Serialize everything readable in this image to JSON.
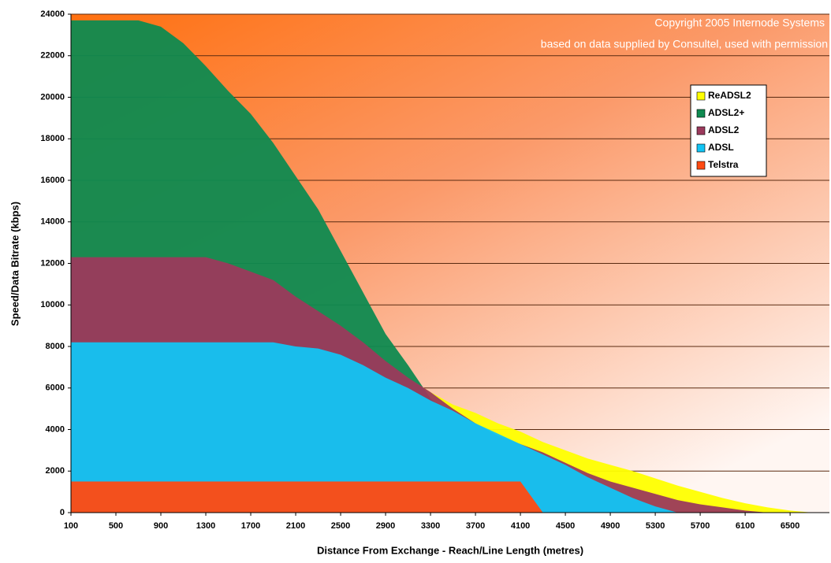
{
  "chart_data": {
    "type": "area",
    "y_label": "Speed/Data Bitrate (kbps)",
    "x_label": "Distance From Exchange - Reach/Line Length (metres)",
    "annotations": [
      "Copyright 2005 Internode Systems",
      "based on data supplied by Consultel, used with permission"
    ],
    "x": [
      100,
      300,
      500,
      700,
      900,
      1100,
      1300,
      1500,
      1700,
      1900,
      2100,
      2300,
      2500,
      2700,
      2900,
      3100,
      3300,
      3500,
      3700,
      3900,
      4100,
      4300,
      4500,
      4700,
      4900,
      5100,
      5300,
      5500,
      5700,
      5900,
      6100,
      6300,
      6500,
      6700
    ],
    "series": [
      {
        "name": "ReADSL2",
        "color": "#ffff00",
        "values": [
          12300,
          12300,
          12300,
          12300,
          12300,
          12300,
          12300,
          12000,
          11600,
          11200,
          10400,
          9700,
          9000,
          8200,
          7300,
          6500,
          5800,
          5200,
          4800,
          4300,
          3900,
          3400,
          3000,
          2600,
          2300,
          2000,
          1650,
          1300,
          1000,
          700,
          450,
          250,
          100,
          0
        ]
      },
      {
        "name": "ADSL2+",
        "color": "#0f8a50",
        "values": [
          23700,
          23700,
          23700,
          23700,
          23400,
          22600,
          21500,
          20300,
          19200,
          17800,
          16200,
          14600,
          12600,
          10600,
          8600,
          7100,
          5500,
          4500,
          3900,
          3300,
          2800,
          2300,
          1800,
          1300,
          900,
          500,
          200,
          0,
          0,
          0,
          0,
          0,
          0,
          0
        ]
      },
      {
        "name": "ADSL2",
        "color": "#9b3a5c",
        "values": [
          12300,
          12300,
          12300,
          12300,
          12300,
          12300,
          12300,
          12000,
          11600,
          11200,
          10400,
          9700,
          9000,
          8200,
          7300,
          6500,
          5800,
          5000,
          4300,
          3700,
          3300,
          2900,
          2400,
          1900,
          1500,
          1200,
          900,
          600,
          400,
          250,
          100,
          0,
          0,
          0
        ]
      },
      {
        "name": "ADSL",
        "color": "#12c4f4",
        "values": [
          8200,
          8200,
          8200,
          8200,
          8200,
          8200,
          8200,
          8200,
          8200,
          8200,
          8000,
          7900,
          7600,
          7100,
          6500,
          6000,
          5400,
          4900,
          4300,
          3800,
          3300,
          2800,
          2300,
          1700,
          1200,
          700,
          300,
          0,
          0,
          0,
          0,
          0,
          0,
          0
        ]
      },
      {
        "name": "Telstra",
        "color": "#ff4a12",
        "values": [
          1500,
          1500,
          1500,
          1500,
          1500,
          1500,
          1500,
          1500,
          1500,
          1500,
          1500,
          1500,
          1500,
          1500,
          1500,
          1500,
          1500,
          1500,
          1500,
          1500,
          1500,
          0,
          0,
          0,
          0,
          0,
          0,
          0,
          0,
          0,
          0,
          0,
          0,
          0
        ]
      }
    ],
    "xlim": [
      100,
      6850
    ],
    "xticks": [
      100,
      500,
      900,
      1300,
      1700,
      2100,
      2500,
      2900,
      3300,
      3700,
      4100,
      4500,
      4900,
      5300,
      5700,
      6100,
      6500
    ],
    "ylim": [
      0,
      24000
    ],
    "yticks": [
      0,
      2000,
      4000,
      6000,
      8000,
      10000,
      12000,
      14000,
      16000,
      18000,
      20000,
      22000,
      24000
    ],
    "grid": true
  }
}
